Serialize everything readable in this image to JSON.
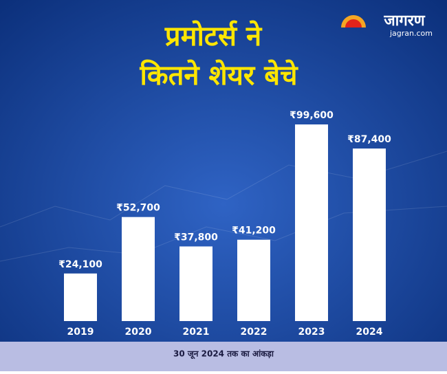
{
  "chart_data": {
    "type": "bar",
    "title_lines": [
      "प्रमोटर्स ने",
      "कितने शेयर बेचे"
    ],
    "logo": {
      "name": "जागरण",
      "site": "jagran.com"
    },
    "footnote": "30 जून 2024 तक का आंकड़ा",
    "categories": [
      "2019",
      "2020",
      "2021",
      "2022",
      "2023",
      "2024"
    ],
    "values": [
      24100,
      52700,
      37800,
      41200,
      99600,
      87400
    ],
    "value_labels": [
      "₹24,100",
      "₹52,700",
      "₹37,800",
      "₹41,200",
      "₹99,600",
      "₹87,400"
    ],
    "color": "#ffffff"
  }
}
